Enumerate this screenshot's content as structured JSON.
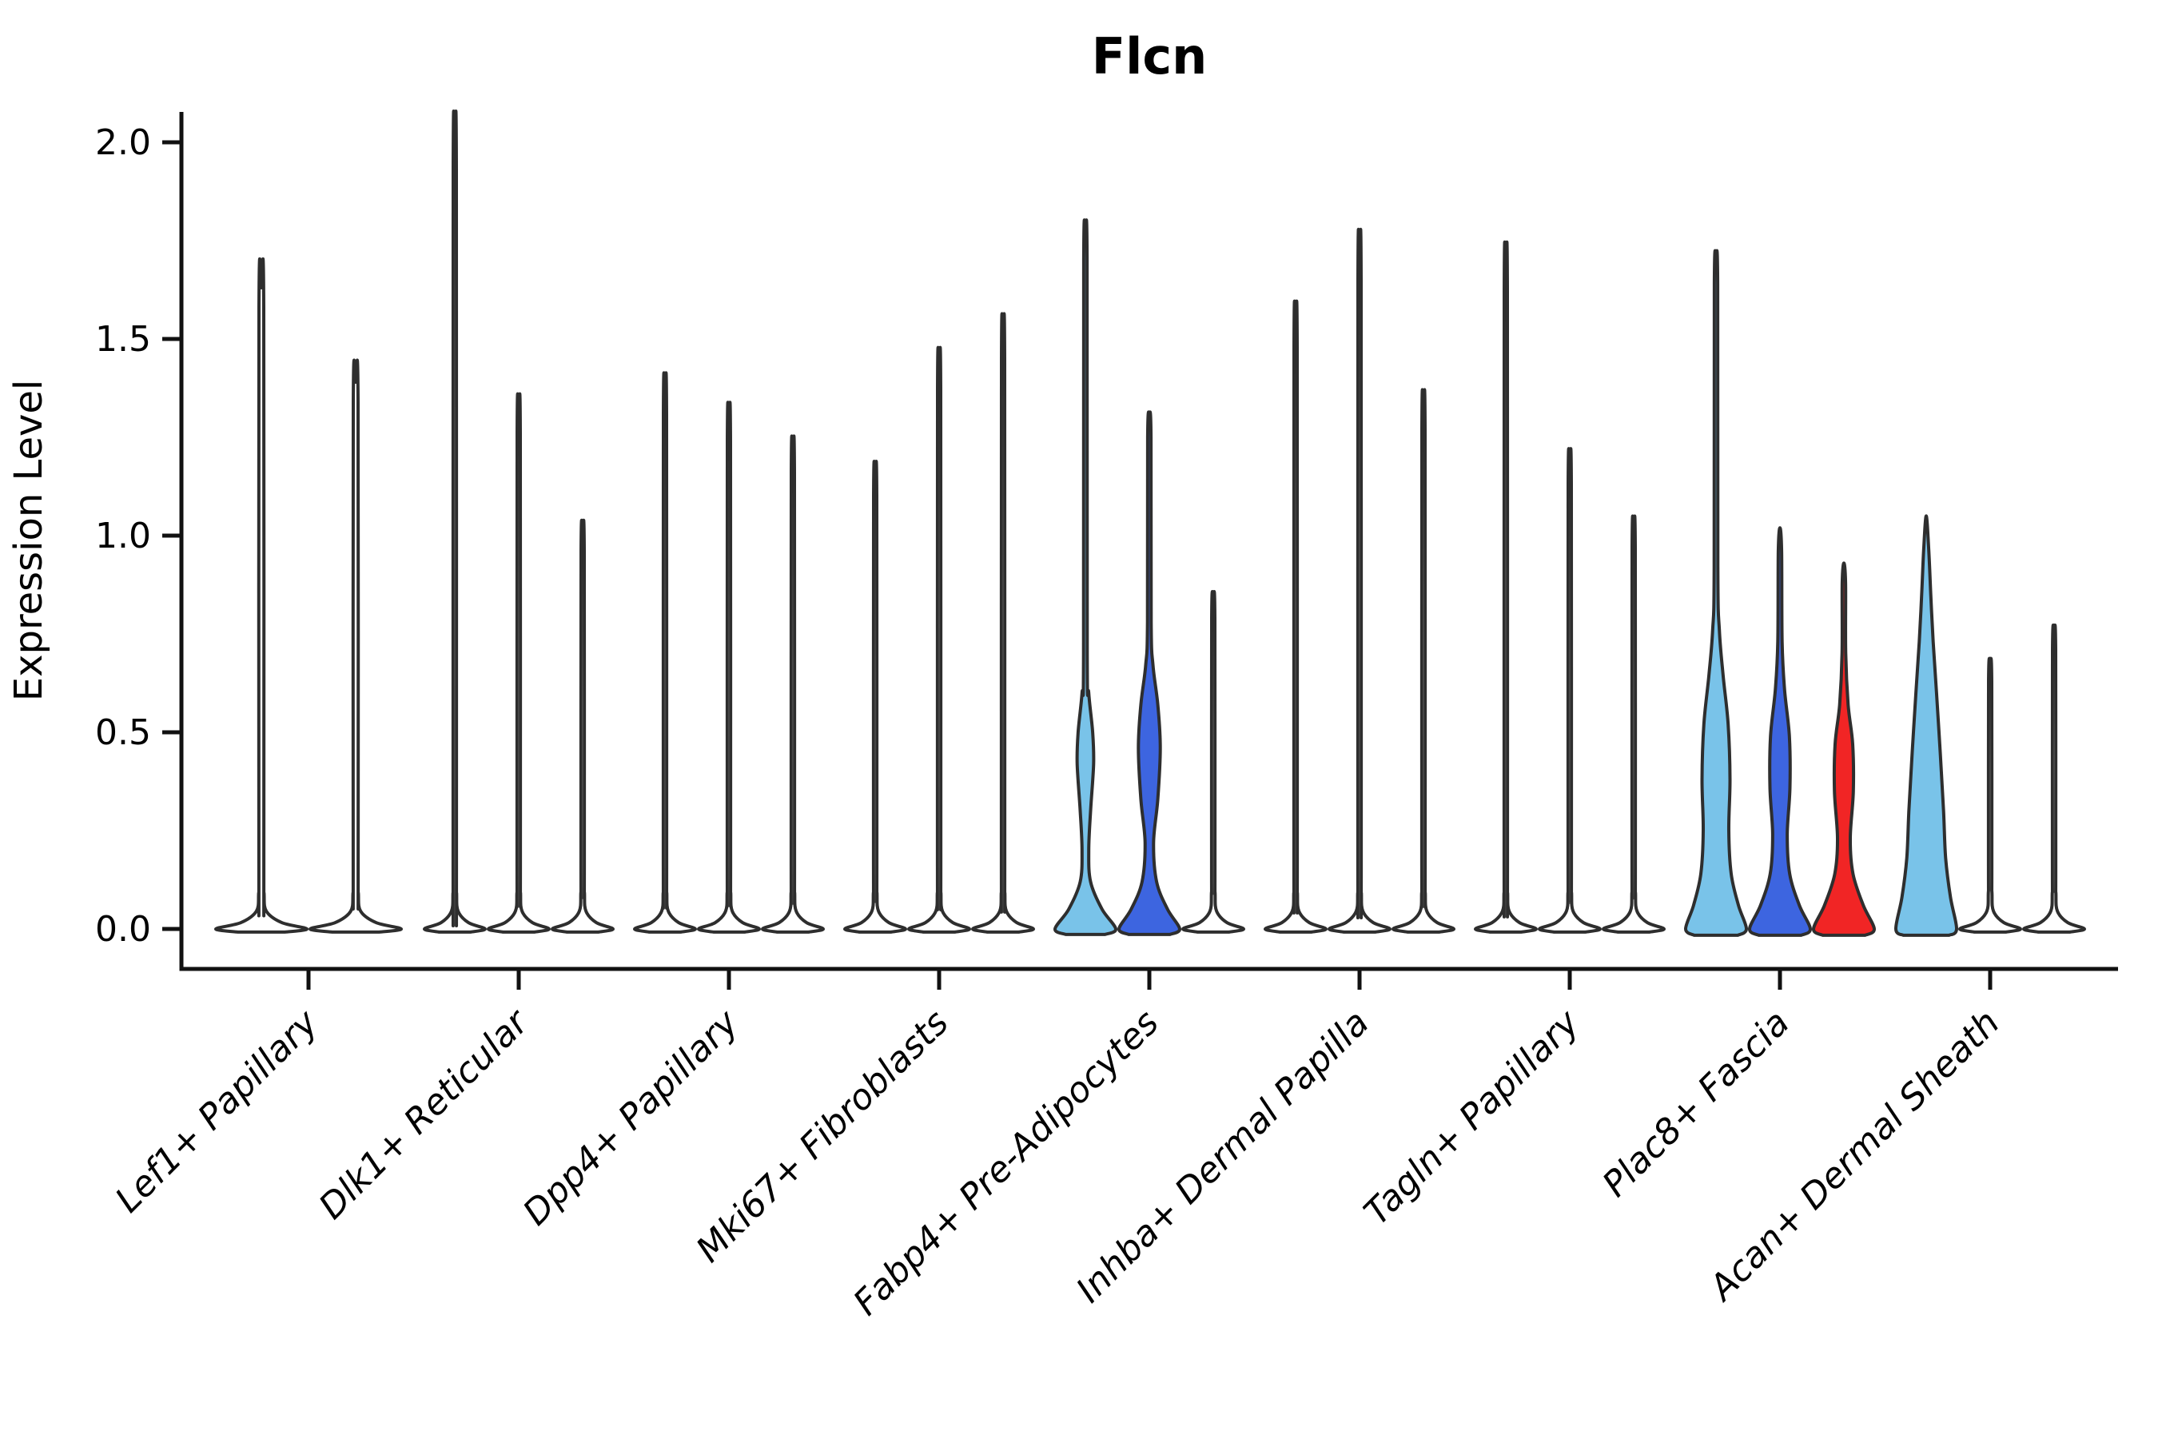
{
  "title": "Flcn",
  "axes": {
    "ylabel": "Expression Level",
    "yticks": [
      {
        "label": "2.0",
        "value": 2.0
      },
      {
        "label": "1.5",
        "value": 1.5
      },
      {
        "label": "1.0",
        "value": 1.0
      },
      {
        "label": "0.5",
        "value": 0.5
      },
      {
        "label": "0.0",
        "value": 0.0
      }
    ]
  },
  "colors": {
    "light_blue": "#79C3E9",
    "royal_blue": "#3D65E0",
    "red": "#F12525",
    "violin_outline": "#2E2E2E",
    "axis_line": "#111111",
    "white_fill": "#FFFFFF"
  },
  "chart_data": {
    "type": "violin",
    "title": "Flcn",
    "xlabel": "",
    "ylabel": "Expression Level",
    "ylim": [
      0,
      2.05
    ],
    "grid": false,
    "legend": "none",
    "categories": [
      "Lef1+ Papillary",
      "Dlk1+ Reticular",
      "Dpp4+ Papillary",
      "Mki67+ Fibroblasts",
      "Fabp4+ Pre-Adipocytes",
      "Inhba+ Dermal Papilla",
      "Tagln+ Papillary",
      "Plac8+ Fascia",
      "Acan+ Dermal Sheath"
    ],
    "groups": [
      {
        "category": "Lef1+ Papillary",
        "violins": [
          {
            "max": 1.63,
            "fill": "white",
            "shape": "spike"
          },
          {
            "max": 1.39,
            "fill": "white",
            "shape": "spike"
          }
        ]
      },
      {
        "category": "Dlk1+ Reticular",
        "violins": [
          {
            "max": 1.98,
            "fill": "white",
            "shape": "spike"
          },
          {
            "max": 1.31,
            "fill": "white",
            "shape": "spike"
          },
          {
            "max": 1.01,
            "fill": "white",
            "shape": "spike"
          }
        ]
      },
      {
        "category": "Dpp4+ Papillary",
        "violins": [
          {
            "max": 1.36,
            "fill": "white",
            "shape": "spike"
          },
          {
            "max": 1.29,
            "fill": "white",
            "shape": "spike"
          },
          {
            "max": 1.21,
            "fill": "white",
            "shape": "spike"
          }
        ]
      },
      {
        "category": "Mki67+ Fibroblasts",
        "violins": [
          {
            "max": 1.15,
            "fill": "white",
            "shape": "spike"
          },
          {
            "max": 1.42,
            "fill": "white",
            "shape": "spike"
          },
          {
            "max": 1.5,
            "fill": "white",
            "shape": "spike"
          }
        ]
      },
      {
        "category": "Fabp4+ Pre-Adipocytes",
        "violins": [
          {
            "max": 1.77,
            "fill": "light_blue",
            "shape": "bulged",
            "profile": [
              [
                -0.014,
                0.65
              ],
              [
                0,
                1
              ],
              [
                0.05,
                0.55
              ],
              [
                0.12,
                0.17
              ],
              [
                0.2,
                0.11
              ],
              [
                0.3,
                0.17
              ],
              [
                0.42,
                0.27
              ],
              [
                0.5,
                0.24
              ],
              [
                0.6,
                0.11
              ],
              [
                0.7,
                0.06
              ],
              [
                1.7,
                0.055
              ],
              [
                1.77,
                0
              ]
            ]
          },
          {
            "max": 1.31,
            "fill": "royal_blue",
            "shape": "bulged",
            "profile": [
              [
                -0.014,
                0.68
              ],
              [
                0,
                1
              ],
              [
                0.05,
                0.6
              ],
              [
                0.12,
                0.24
              ],
              [
                0.22,
                0.14
              ],
              [
                0.33,
                0.28
              ],
              [
                0.46,
                0.36
              ],
              [
                0.57,
                0.28
              ],
              [
                0.67,
                0.12
              ],
              [
                0.78,
                0.06
              ],
              [
                1.25,
                0.055
              ],
              [
                1.31,
                0
              ]
            ]
          },
          {
            "max": 0.84,
            "fill": "white",
            "shape": "spike"
          }
        ]
      },
      {
        "category": "Inhba+ Dermal Papilla",
        "violins": [
          {
            "max": 1.53,
            "fill": "white",
            "shape": "spike"
          },
          {
            "max": 1.7,
            "fill": "white",
            "shape": "spike"
          },
          {
            "max": 1.32,
            "fill": "white",
            "shape": "spike"
          }
        ]
      },
      {
        "category": "Tagln+ Papillary",
        "violins": [
          {
            "max": 1.67,
            "fill": "white",
            "shape": "spike"
          },
          {
            "max": 1.18,
            "fill": "white",
            "shape": "spike"
          },
          {
            "max": 1.02,
            "fill": "white",
            "shape": "spike"
          }
        ]
      },
      {
        "category": "Plac8+ Fascia",
        "violins": [
          {
            "max": 1.71,
            "fill": "light_blue",
            "shape": "bulged",
            "profile": [
              [
                -0.016,
                0.72
              ],
              [
                0,
                1
              ],
              [
                0.06,
                0.74
              ],
              [
                0.14,
                0.5
              ],
              [
                0.25,
                0.42
              ],
              [
                0.38,
                0.46
              ],
              [
                0.52,
                0.4
              ],
              [
                0.64,
                0.24
              ],
              [
                0.76,
                0.11
              ],
              [
                0.92,
                0.06
              ],
              [
                1.64,
                0.055
              ],
              [
                1.71,
                0
              ]
            ]
          },
          {
            "max": 1.02,
            "fill": "royal_blue",
            "shape": "bulged",
            "profile": [
              [
                -0.016,
                0.7
              ],
              [
                0,
                1
              ],
              [
                0.06,
                0.64
              ],
              [
                0.14,
                0.32
              ],
              [
                0.24,
                0.24
              ],
              [
                0.36,
                0.33
              ],
              [
                0.49,
                0.31
              ],
              [
                0.61,
                0.15
              ],
              [
                0.73,
                0.07
              ],
              [
                0.96,
                0.055
              ],
              [
                1.02,
                0
              ]
            ]
          },
          {
            "max": 0.93,
            "fill": "red",
            "shape": "bulged",
            "profile": [
              [
                -0.016,
                0.7
              ],
              [
                0,
                1
              ],
              [
                0.06,
                0.64
              ],
              [
                0.14,
                0.3
              ],
              [
                0.23,
                0.21
              ],
              [
                0.35,
                0.31
              ],
              [
                0.47,
                0.29
              ],
              [
                0.57,
                0.14
              ],
              [
                0.7,
                0.06
              ],
              [
                0.88,
                0.055
              ],
              [
                0.93,
                0
              ]
            ]
          }
        ]
      },
      {
        "category": "Acan+ Dermal Sheath",
        "violins": [
          {
            "max": 1.05,
            "fill": "light_blue",
            "shape": "bulged",
            "profile": [
              [
                -0.016,
                0.75
              ],
              [
                0,
                1
              ],
              [
                0.08,
                0.8
              ],
              [
                0.18,
                0.64
              ],
              [
                0.3,
                0.57
              ],
              [
                0.45,
                0.46
              ],
              [
                0.6,
                0.34
              ],
              [
                0.73,
                0.23
              ],
              [
                0.85,
                0.15
              ],
              [
                0.97,
                0.08
              ],
              [
                1.05,
                0
              ]
            ]
          },
          {
            "max": 0.68,
            "fill": "white",
            "shape": "spike"
          },
          {
            "max": 0.76,
            "fill": "white",
            "shape": "spike"
          }
        ]
      }
    ]
  }
}
